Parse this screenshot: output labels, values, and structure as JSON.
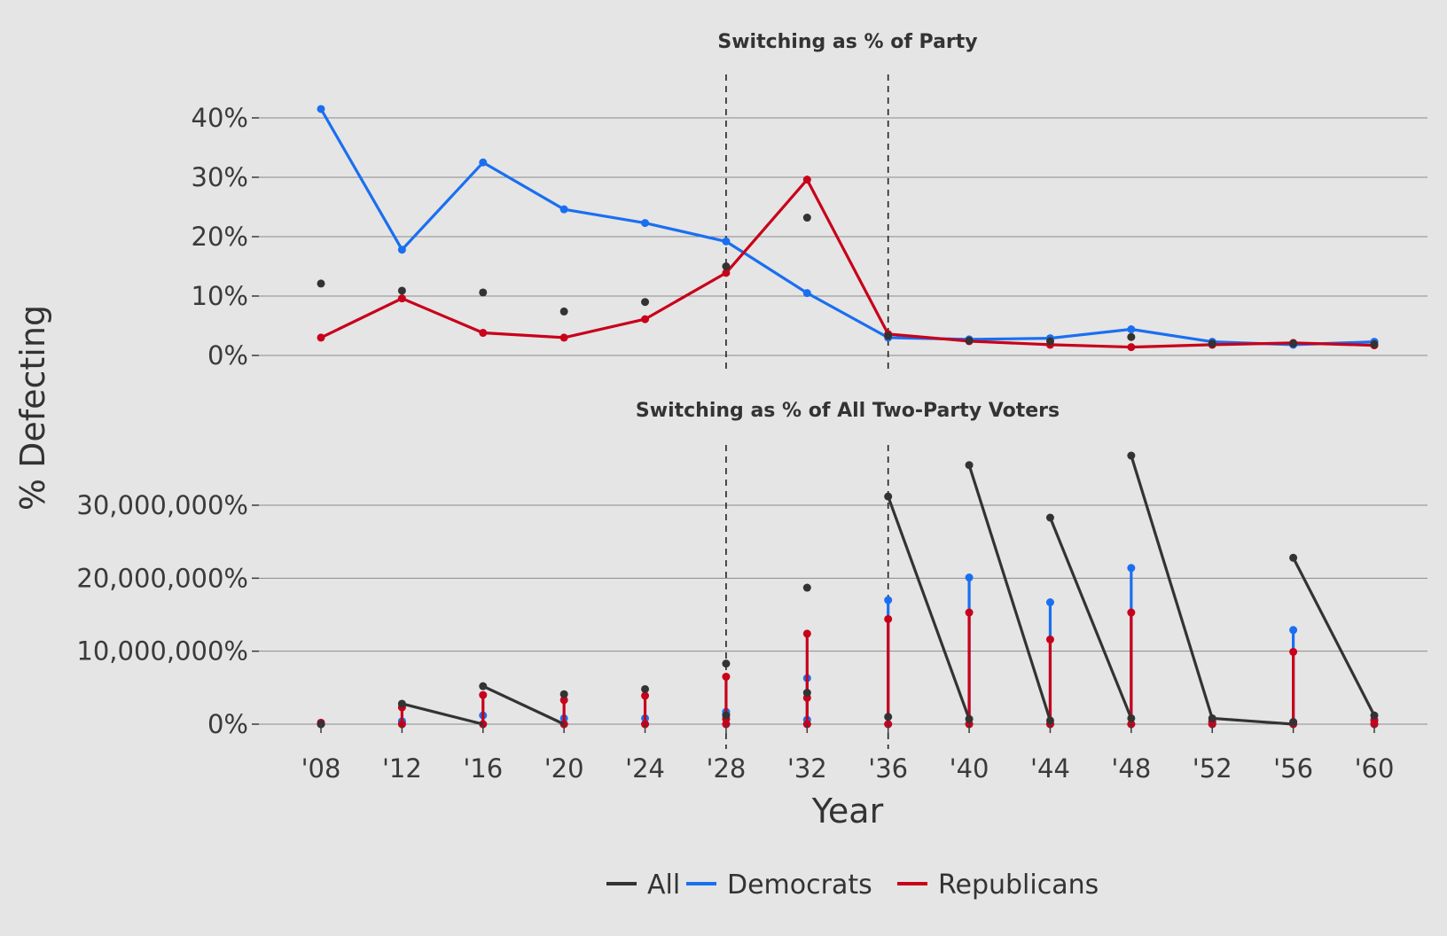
{
  "chart_data": {
    "type": "line",
    "ylabel": "% Defecting",
    "xlabel": "Year",
    "x_tick_labels": [
      "'08",
      "'12",
      "'16",
      "'20",
      "'24",
      "'28",
      "'32",
      "'36",
      "'40",
      "'44",
      "'48",
      "'52",
      "'56",
      "'60"
    ],
    "x": [
      1908,
      1912,
      1916,
      1920,
      1924,
      1928,
      1932,
      1936,
      1940,
      1944,
      1948,
      1952,
      1956,
      1960
    ],
    "reference_lines_x": [
      1928,
      1936
    ],
    "legend": {
      "position": "bottom",
      "entries": [
        {
          "name": "All",
          "color": "#333333"
        },
        {
          "name": "Democrats",
          "color": "#1a6ff0"
        },
        {
          "name": "Republicans",
          "color": "#c8001a"
        }
      ]
    },
    "colors": {
      "all": "#333333",
      "democrats": "#1a6ff0",
      "republicans": "#c8001a"
    },
    "panels": [
      {
        "title": "Switching as % of Party",
        "ylim": [
          0,
          40
        ],
        "yticks": [
          0,
          10,
          20,
          30,
          40
        ],
        "ytick_labels": [
          "0%",
          "10%",
          "20%",
          "30%",
          "40%"
        ],
        "series": [
          {
            "name": "Democrats",
            "values": [
              41.5,
              17.8,
              32.5,
              24.6,
              22.3,
              19.2,
              10.5,
              3.0,
              2.7,
              2.9,
              4.4,
              2.3,
              1.8,
              2.3
            ]
          },
          {
            "name": "Republicans",
            "values": [
              3.0,
              9.6,
              3.8,
              3.0,
              6.1,
              13.9,
              29.6,
              3.6,
              2.4,
              1.8,
              1.4,
              1.8,
              2.1,
              1.7
            ]
          },
          {
            "name": "All",
            "mode": "points",
            "values": [
              12.1,
              10.9,
              10.6,
              7.4,
              9.0,
              15.0,
              23.2,
              3.3,
              2.5,
              2.4,
              3.1,
              2.0,
              2.0,
              1.9
            ]
          }
        ]
      },
      {
        "title": "Switching as % of All Two-Party Voters",
        "ylim": [
          0,
          38000000
        ],
        "yticks": [
          0,
          10000000,
          20000000,
          30000000
        ],
        "ytick_labels": [
          "0%",
          "10,000,000%",
          "20,000,000%",
          "30,000,000%"
        ],
        "all_lines": [
          {
            "from": [
              1912,
              2800000
            ],
            "to": [
              1916,
              0
            ]
          },
          {
            "from": [
              1916,
              5200000
            ],
            "to": [
              1920,
              0
            ]
          },
          {
            "from": [
              1936,
              31200000
            ],
            "to": [
              1940,
              700000
            ]
          },
          {
            "from": [
              1940,
              35500000
            ],
            "to": [
              1944,
              500000
            ]
          },
          {
            "from": [
              1944,
              28300000
            ],
            "to": [
              1948,
              800000
            ]
          },
          {
            "from": [
              1948,
              36800000
            ],
            "to": [
              1952,
              800000
            ]
          },
          {
            "from": [
              1952,
              800000
            ],
            "to": [
              1956,
              0
            ]
          },
          {
            "from": [
              1956,
              22800000
            ],
            "to": [
              1960,
              1200000
            ]
          }
        ],
        "all_points": [
          [
            1908,
            0
          ],
          [
            1912,
            2800000
          ],
          [
            1916,
            5200000
          ],
          [
            1920,
            4100000
          ],
          [
            1924,
            4800000
          ],
          [
            1928,
            8300000
          ],
          [
            1928,
            1200000
          ],
          [
            1932,
            18700000
          ],
          [
            1932,
            4300000
          ],
          [
            1936,
            31200000
          ],
          [
            1936,
            1000000
          ],
          [
            1940,
            35500000
          ],
          [
            1940,
            700000
          ],
          [
            1944,
            28300000
          ],
          [
            1944,
            500000
          ],
          [
            1948,
            36800000
          ],
          [
            1948,
            800000
          ],
          [
            1952,
            800000
          ],
          [
            1956,
            22800000
          ],
          [
            1956,
            300000
          ],
          [
            1960,
            1200000
          ]
        ],
        "democrat_segments": [
          [
            1908,
            0,
            0
          ],
          [
            1912,
            0,
            400000
          ],
          [
            1916,
            0,
            1200000
          ],
          [
            1920,
            0,
            800000
          ],
          [
            1924,
            0,
            800000
          ],
          [
            1928,
            0,
            1700000
          ],
          [
            1932,
            0,
            6300000
          ],
          [
            1936,
            0,
            17000000
          ],
          [
            1940,
            0,
            20100000
          ],
          [
            1944,
            0,
            16700000
          ],
          [
            1948,
            0,
            21400000
          ],
          [
            1952,
            0,
            300000
          ],
          [
            1956,
            0,
            12900000
          ],
          [
            1960,
            0,
            600000
          ]
        ],
        "republican_segments": [
          [
            1908,
            0,
            200000
          ],
          [
            1912,
            0,
            2300000
          ],
          [
            1916,
            0,
            4000000
          ],
          [
            1920,
            0,
            3300000
          ],
          [
            1924,
            0,
            3900000
          ],
          [
            1928,
            0,
            6500000
          ],
          [
            1932,
            0,
            12400000
          ],
          [
            1936,
            0,
            14400000
          ],
          [
            1940,
            0,
            15300000
          ],
          [
            1944,
            0,
            11600000
          ],
          [
            1948,
            0,
            15300000
          ],
          [
            1952,
            0,
            300000
          ],
          [
            1956,
            0,
            9900000
          ],
          [
            1960,
            0,
            500000
          ]
        ],
        "extra_points": {
          "democrats": [
            [
              1928,
              1400000
            ],
            [
              1932,
              600000
            ]
          ],
          "republicans": [
            [
              1928,
              700000
            ],
            [
              1932,
              3600000
            ]
          ]
        }
      }
    ]
  }
}
